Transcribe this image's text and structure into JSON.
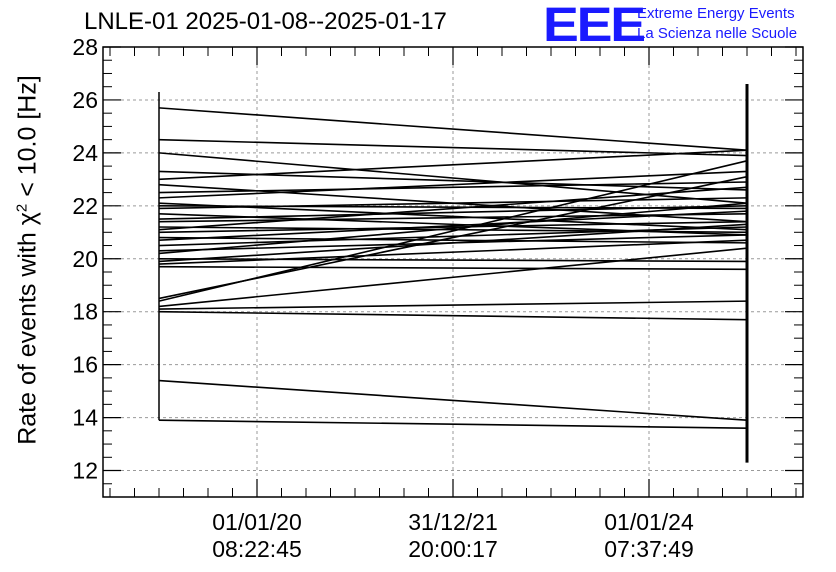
{
  "title": "LNLE-01 2025-01-08--2025-01-17",
  "logo": {
    "text": "EEE",
    "line1": "Extreme Energy Events",
    "line2": "La Scienza nelle Scuole",
    "color": "#1a1aff"
  },
  "chart_data": {
    "type": "line",
    "title": "LNLE-01 2025-01-08--2025-01-17",
    "ylabel": {
      "prefix": "Rate of events with ",
      "symbol": "χ",
      "sup": "2",
      "suffix": " < 10.0 [Hz]"
    },
    "ylim": [
      11,
      28
    ],
    "yticks": [
      12,
      14,
      16,
      18,
      20,
      22,
      24,
      26,
      28
    ],
    "xticks": [
      {
        "x": 0.22,
        "date": "01/01/20",
        "time": "08:22:45"
      },
      {
        "x": 0.5,
        "date": "31/12/21",
        "time": "20:00:17"
      },
      {
        "x": 0.78,
        "date": "01/01/24",
        "time": "07:37:49"
      }
    ],
    "xlim": [
      0,
      1
    ],
    "grid": true,
    "series_color": "#000000",
    "left_x": 0.08,
    "right_x": 0.92,
    "left_range": [
      13.9,
      26.3
    ],
    "right_range": [
      12.3,
      26.6
    ],
    "segments": [
      [
        25.7,
        24.1
      ],
      [
        24.5,
        23.9
      ],
      [
        24.0,
        22.1
      ],
      [
        23.3,
        22.6
      ],
      [
        23.0,
        24.1
      ],
      [
        22.8,
        21.4
      ],
      [
        22.5,
        22.9
      ],
      [
        22.3,
        23.3
      ],
      [
        22.1,
        21.1
      ],
      [
        22.0,
        21.9
      ],
      [
        21.9,
        22.3
      ],
      [
        21.7,
        20.9
      ],
      [
        21.5,
        22.0
      ],
      [
        21.4,
        21.7
      ],
      [
        21.2,
        21.0
      ],
      [
        21.1,
        22.7
      ],
      [
        21.0,
        21.4
      ],
      [
        20.8,
        20.6
      ],
      [
        20.7,
        21.8
      ],
      [
        20.5,
        21.2
      ],
      [
        20.3,
        20.9
      ],
      [
        20.2,
        22.1
      ],
      [
        20.0,
        19.9
      ],
      [
        19.9,
        21.3
      ],
      [
        19.8,
        20.7
      ],
      [
        19.7,
        19.6
      ],
      [
        18.5,
        23.1
      ],
      [
        18.4,
        23.7
      ],
      [
        18.2,
        20.4
      ],
      [
        18.1,
        18.4
      ],
      [
        18.0,
        17.7
      ],
      [
        15.4,
        13.9
      ],
      [
        13.9,
        13.6
      ]
    ]
  }
}
